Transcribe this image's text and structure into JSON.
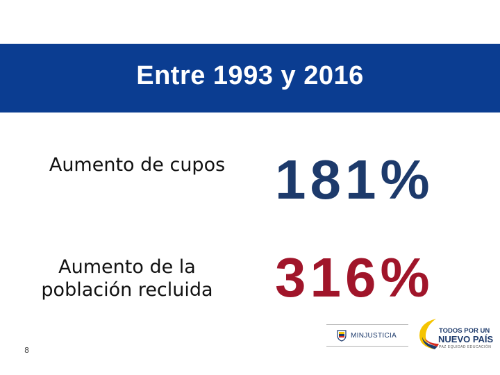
{
  "header": {
    "title": "Entre 1993 y 2016"
  },
  "stats": [
    {
      "label": "Aumento de cupos",
      "value": "181%",
      "color": "#1d3a6b"
    },
    {
      "label": "Aumento de la población recluida",
      "value": "316%",
      "color": "#a0152a"
    }
  ],
  "footer": {
    "page_number": "8",
    "logos": {
      "ministry": "MINJUSTICIA",
      "government_line1": "TODOS POR UN",
      "government_line2": "NUEVO PAÍS",
      "government_tagline": "PAZ  EQUIDAD  EDUCACIÓN"
    }
  },
  "colors": {
    "banner": "#0b3d91",
    "accent_yellow": "#f5c400",
    "accent_red": "#d52b1e"
  }
}
